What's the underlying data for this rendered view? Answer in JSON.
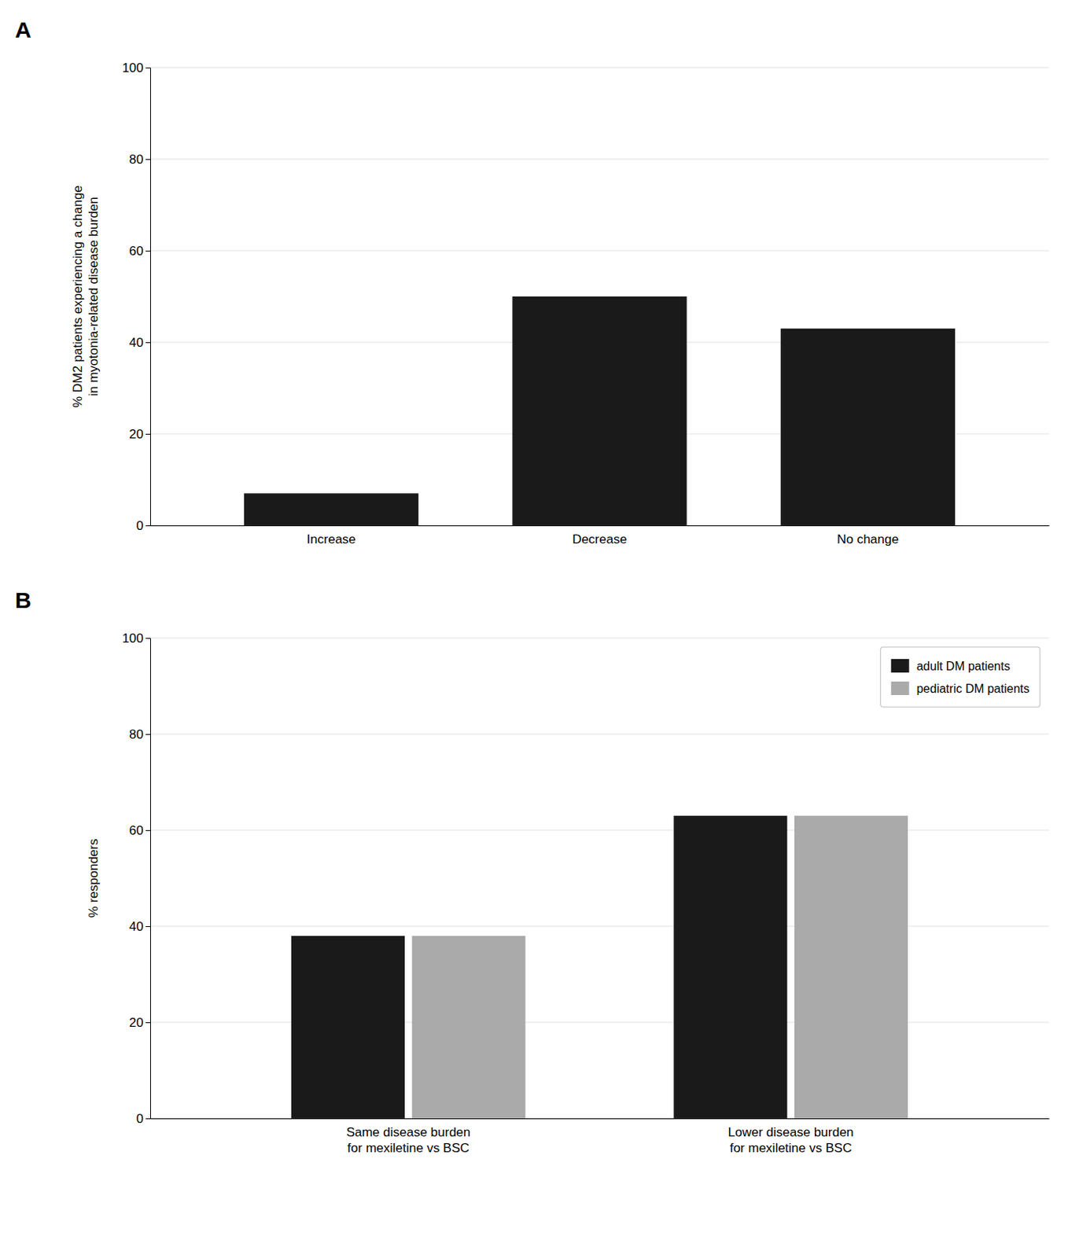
{
  "chart_data": [
    {
      "type": "bar",
      "title": "A",
      "y_label": "% DM2 patients experiencing a change\nin myotonia-related disease burden",
      "categories": [
        "Increase",
        "Decrease",
        "No change"
      ],
      "values": [
        7,
        50,
        43
      ],
      "color": "#1a1a1a",
      "ylim": [
        0,
        100
      ],
      "yticks": [
        0,
        20,
        40,
        60,
        80,
        100
      ],
      "grid": true
    },
    {
      "type": "bar",
      "title": "B",
      "y_label": "% responders",
      "categories": [
        "Same disease burden\nfor mexiletine vs BSC",
        "Lower disease burden\nfor mexiletine vs BSC"
      ],
      "series": [
        {
          "name": "adult DM patients",
          "color": "#1a1a1a",
          "values": [
            38,
            63
          ]
        },
        {
          "name": "pediatric DM patients",
          "color": "#aaaaaa",
          "values": [
            38,
            63
          ]
        }
      ],
      "ylim": [
        0,
        100
      ],
      "yticks": [
        0,
        20,
        40,
        60,
        80,
        100
      ],
      "grid": true,
      "legend": "upper right"
    }
  ]
}
